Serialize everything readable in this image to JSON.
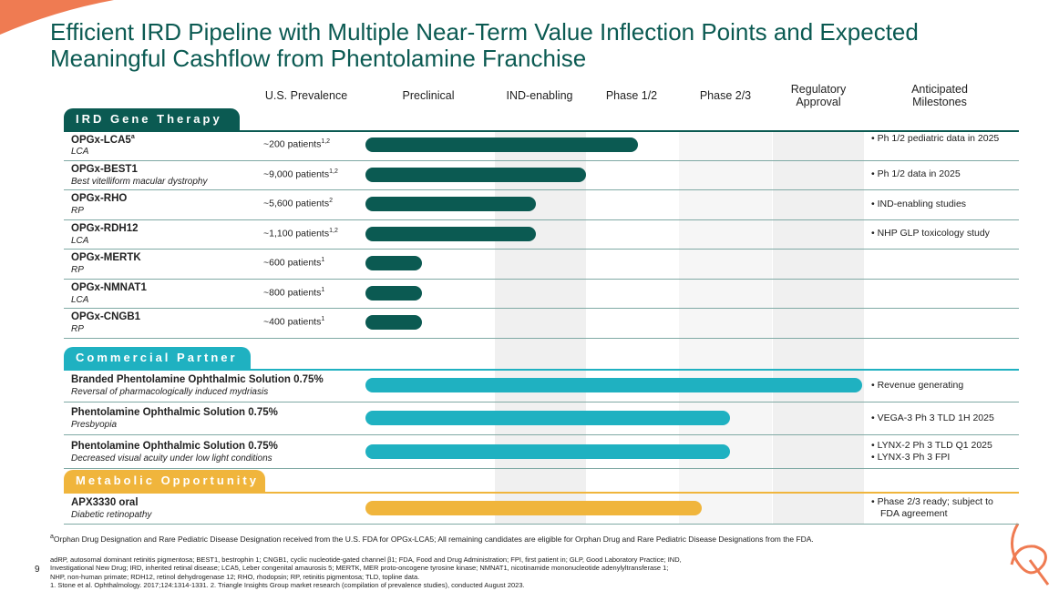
{
  "header": {
    "title_line1": "Efficient IRD Pipeline with Multiple Near-Term Value Inflection Points and Expected",
    "title_line2": "Meaningful Cashflow from Phentolamine Franchise"
  },
  "columns": [
    "U.S. Prevalence",
    "Preclinical",
    "IND-enabling",
    "Phase 1/2",
    "Phase 2/3",
    "Regulatory Approval",
    "Anticipated Milestones"
  ],
  "sections": [
    {
      "label": "IRD Gene Therapy",
      "rows": [
        {
          "name": "OPGx-LCA5",
          "name_sup": "a",
          "subtitle": "LCA",
          "prevalence": "~200 patients",
          "prevalence_sup": "1,2",
          "milestones": [
            "Ph 1/2 pediatric data in 2025"
          ]
        },
        {
          "name": "OPGx-BEST1",
          "subtitle": "Best vitelliform macular dystrophy",
          "prevalence": "~9,000 patients",
          "prevalence_sup": "1,2",
          "milestones": [
            "Ph 1/2 data in 2025"
          ]
        },
        {
          "name": "OPGx-RHO",
          "subtitle": "RP",
          "prevalence": "~5,600 patients",
          "prevalence_sup": "2",
          "milestones": [
            "IND-enabling studies"
          ]
        },
        {
          "name": "OPGx-RDH12",
          "subtitle": "LCA",
          "prevalence": "~1,100 patients",
          "prevalence_sup": "1,2",
          "milestones": [
            "NHP GLP toxicology study"
          ]
        },
        {
          "name": "OPGx-MERTK",
          "subtitle": "RP",
          "prevalence": "~600 patients",
          "prevalence_sup": "1",
          "milestones": []
        },
        {
          "name": "OPGx-NMNAT1",
          "subtitle": "LCA",
          "prevalence": "~800 patients",
          "prevalence_sup": "1",
          "milestones": []
        },
        {
          "name": "OPGx-CNGB1",
          "subtitle": "RP",
          "prevalence": "~400 patients",
          "prevalence_sup": "1",
          "milestones": []
        }
      ]
    },
    {
      "label": "Commercial Partner",
      "rows": [
        {
          "name": "Branded Phentolamine Ophthalmic Solution 0.75%",
          "subtitle": "Reversal of pharmacologically induced mydriasis",
          "milestones": [
            "Revenue generating"
          ]
        },
        {
          "name": "Phentolamine Ophthalmic Solution 0.75%",
          "subtitle": "Presbyopia",
          "milestones": [
            "VEGA-3 Ph 3 TLD 1H 2025"
          ]
        },
        {
          "name": "Phentolamine Ophthalmic Solution 0.75%",
          "subtitle": "Decreased visual acuity under low light conditions",
          "milestones": [
            "LYNX-2 Ph 3 TLD Q1 2025",
            "LYNX-3 Ph 3 FPI"
          ]
        }
      ]
    },
    {
      "label": "Metabolic Opportunity",
      "rows": [
        {
          "name": "APX3330 oral",
          "subtitle": "Diabetic retinopathy",
          "milestones": [
            "Phase 2/3 ready; subject to FDA agreement"
          ]
        }
      ]
    }
  ],
  "footnotes": [
    {
      "mark": "a",
      "text": "Orphan Drug Designation and Rare Pediatric Disease Designation received from the U.S. FDA for OPGx-LCA5; All remaining candidates are eligible for Orphan Drug and Rare Pediatric Disease Designations from the FDA."
    },
    {
      "text": "adRP, autosomal dominant retinitis pigmentosa; BEST1, bestrophin 1; CNGB1, cyclic nucleotide-gated channel β1; FDA, Food and Drug Administration; FPI, first patient in; GLP, Good Laboratory Practice; IND,"
    },
    {
      "text": "Investigational New Drug; IRD, inherited retinal disease; LCA5, Leber congenital amaurosis 5; MERTK, MER proto-oncogene tyrosine kinase; NMNAT1, nicotinamide mononucleotide adenylyltransferase 1;"
    },
    {
      "text": "NHP, non-human primate; RDH12, retinol dehydrogenase 12; RHO, rhodopsin; RP, retinitis pigmentosa; TLD, topline data."
    },
    {
      "text": "1. Stone et al. Ophthalmology. 2017;124:1314-1331. 2. Triangle Insights Group market research (compilation of prevalence studies), conducted August 2023."
    }
  ],
  "page_number": "9"
}
